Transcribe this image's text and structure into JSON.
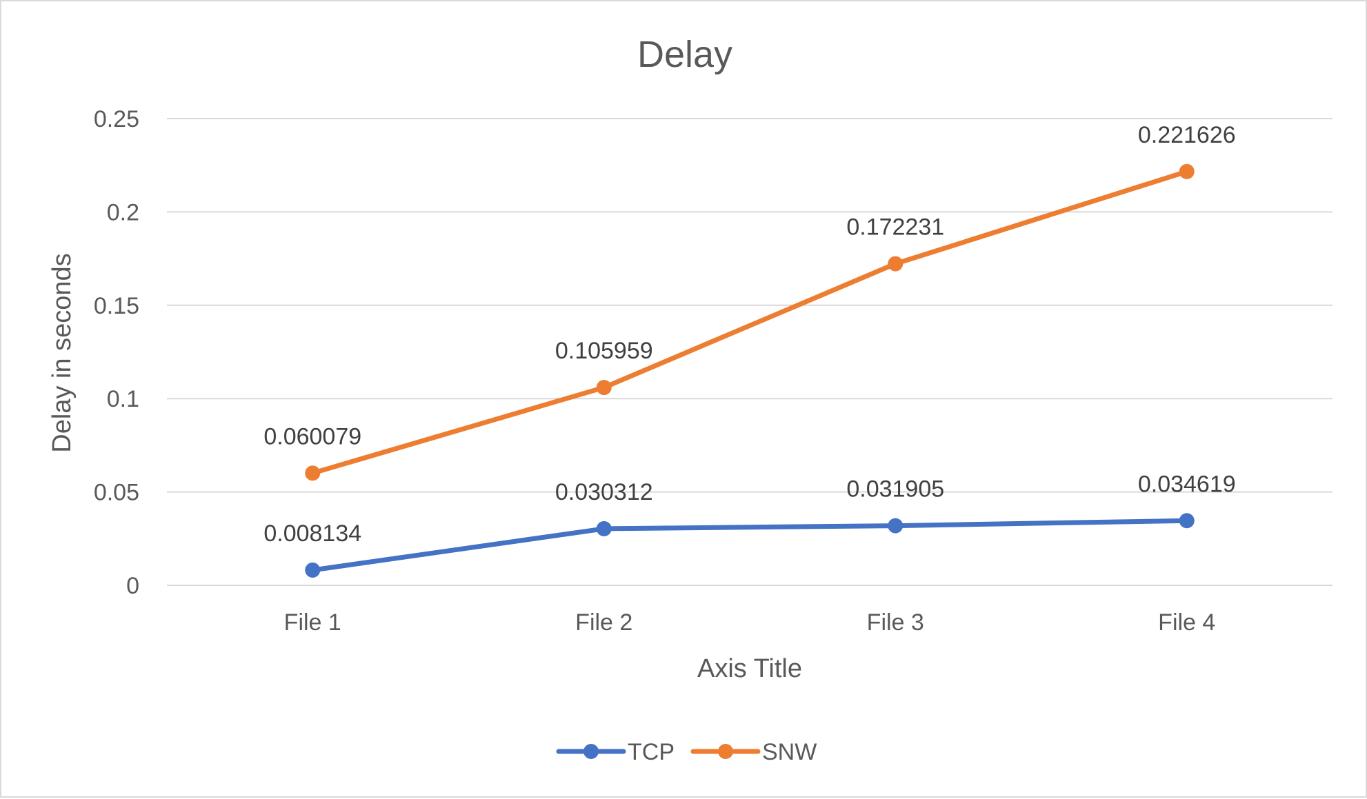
{
  "chart_data": {
    "type": "line",
    "title": "Delay",
    "xlabel": "Axis Title",
    "ylabel": "Delay in seconds",
    "categories": [
      "File 1",
      "File 2",
      "File 3",
      "File 4"
    ],
    "ylim": [
      0,
      0.25
    ],
    "yticks": [
      "0",
      "0.05",
      "0.1",
      "0.15",
      "0.2",
      "0.25"
    ],
    "grid": true,
    "legend_position": "bottom",
    "data_labels": true,
    "series": [
      {
        "name": "TCP",
        "color": "#4472c4",
        "values": [
          0.008134,
          0.030312,
          0.031905,
          0.034619
        ],
        "labels": [
          "0.008134",
          "0.030312",
          "0.031905",
          "0.034619"
        ]
      },
      {
        "name": "SNW",
        "color": "#ed7d31",
        "values": [
          0.060079,
          0.105959,
          0.172231,
          0.221626
        ],
        "labels": [
          "0.060079",
          "0.105959",
          "0.172231",
          "0.221626"
        ]
      }
    ]
  }
}
